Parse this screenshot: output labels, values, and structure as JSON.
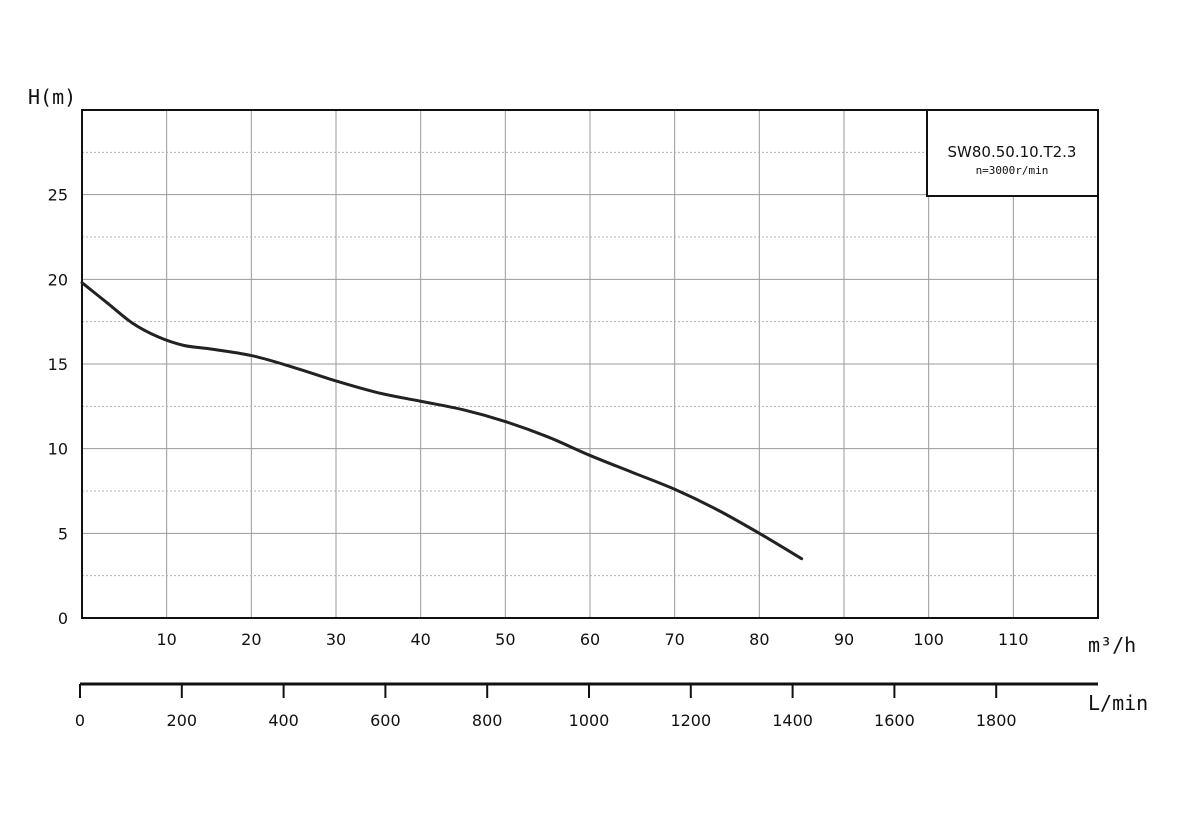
{
  "chart_data": {
    "type": "line",
    "title": "",
    "ylabel": "H(m)",
    "xlabel": "m³/h",
    "xlabel_secondary": "L/min",
    "xlim": [
      0,
      120
    ],
    "ylim": [
      0,
      30
    ],
    "xlim_secondary": [
      0,
      2000
    ],
    "y_ticks": [
      0,
      5,
      10,
      15,
      20,
      25
    ],
    "x_ticks": [
      10,
      20,
      30,
      40,
      50,
      60,
      70,
      80,
      90,
      100,
      110
    ],
    "x_ticks_secondary": [
      0,
      200,
      400,
      600,
      800,
      1000,
      1200,
      1400,
      1600,
      1800
    ],
    "grid": true,
    "legend": {
      "placement": "top-right",
      "model": "SW80.50.10.T2.3",
      "speed": "n=3000r/min"
    },
    "series": [
      {
        "x": [
          0,
          3,
          6,
          9,
          12,
          15,
          20,
          25,
          30,
          35,
          40,
          45,
          50,
          55,
          60,
          65,
          70,
          75,
          80,
          85
        ],
        "y": [
          19.8,
          18.6,
          17.4,
          16.6,
          16.1,
          15.9,
          15.5,
          14.8,
          14.0,
          13.3,
          12.8,
          12.3,
          11.6,
          10.7,
          9.6,
          8.6,
          7.6,
          6.4,
          5.0,
          3.5
        ]
      }
    ]
  }
}
